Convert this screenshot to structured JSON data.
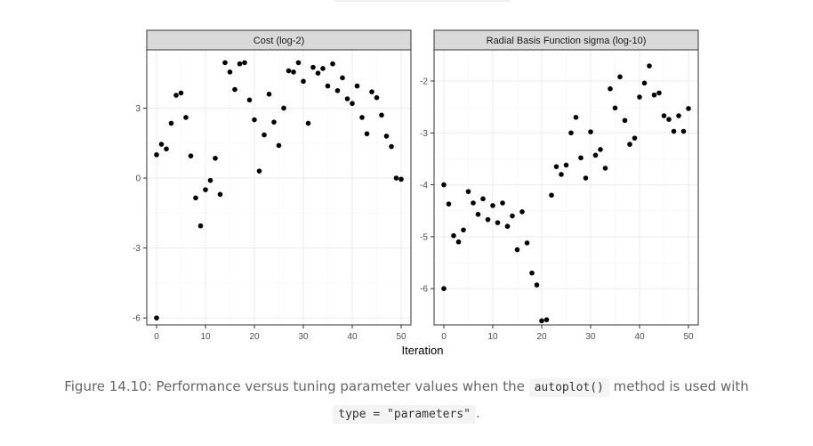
{
  "chart_data": [
    {
      "type": "scatter",
      "title": "Cost (log-2)",
      "xlabel": "Iteration",
      "ylabel": "",
      "xlim": [
        -2,
        52
      ],
      "ylim": [
        -6.3,
        5.5
      ],
      "xticks": [
        "0",
        "10",
        "20",
        "30",
        "40",
        "50"
      ],
      "yticks": [
        "-6",
        "-3",
        "0",
        "3"
      ],
      "grid": true,
      "x": [
        0,
        0,
        1,
        2,
        3,
        4,
        5,
        6,
        7,
        8,
        9,
        10,
        11,
        12,
        13,
        14,
        15,
        16,
        17,
        18,
        19,
        20,
        21,
        22,
        23,
        24,
        25,
        26,
        27,
        28,
        29,
        30,
        31,
        32,
        33,
        34,
        35,
        36,
        37,
        38,
        39,
        40,
        41,
        42,
        43,
        44,
        45,
        46,
        47,
        48,
        49,
        50
      ],
      "y": [
        -6.0,
        1.0,
        1.45,
        1.25,
        2.35,
        3.55,
        3.65,
        2.6,
        0.95,
        -0.85,
        -2.05,
        -0.5,
        -0.1,
        0.85,
        -0.7,
        4.95,
        4.55,
        3.8,
        4.9,
        4.95,
        3.35,
        2.5,
        0.3,
        1.85,
        3.6,
        2.4,
        1.4,
        3.0,
        4.6,
        4.55,
        4.95,
        4.15,
        2.35,
        4.75,
        4.5,
        4.7,
        3.95,
        4.9,
        3.75,
        4.3,
        3.4,
        3.2,
        3.95,
        2.6,
        1.9,
        3.7,
        3.45,
        2.7,
        1.8,
        1.35,
        0.0,
        -0.05
      ]
    },
    {
      "type": "scatter",
      "title": "Radial Basis Function sigma (log-10)",
      "xlabel": "Iteration",
      "ylabel": "",
      "xlim": [
        -2,
        52
      ],
      "ylim": [
        -6.7,
        -1.4
      ],
      "xticks": [
        "0",
        "10",
        "20",
        "30",
        "40",
        "50"
      ],
      "yticks": [
        "-6",
        "-5",
        "-4",
        "-3",
        "-2"
      ],
      "grid": true,
      "x": [
        0,
        0,
        1,
        2,
        3,
        4,
        5,
        6,
        7,
        8,
        9,
        10,
        11,
        12,
        13,
        14,
        15,
        16,
        17,
        18,
        19,
        20,
        21,
        22,
        23,
        24,
        25,
        26,
        27,
        28,
        29,
        30,
        31,
        32,
        33,
        34,
        35,
        36,
        37,
        38,
        39,
        40,
        41,
        42,
        43,
        44,
        45,
        46,
        47,
        48,
        49,
        50
      ],
      "y": [
        -6.0,
        -4.0,
        -4.37,
        -4.98,
        -5.1,
        -4.87,
        -4.13,
        -4.35,
        -4.57,
        -4.27,
        -4.67,
        -4.4,
        -4.73,
        -4.35,
        -4.8,
        -4.6,
        -5.25,
        -4.52,
        -5.12,
        -5.7,
        -5.93,
        -6.62,
        -6.6,
        -4.2,
        -3.65,
        -3.8,
        -3.62,
        -3.0,
        -2.7,
        -3.48,
        -3.87,
        -2.98,
        -3.43,
        -3.32,
        -3.68,
        -2.15,
        -2.52,
        -1.92,
        -2.76,
        -3.22,
        -3.1,
        -2.31,
        -2.04,
        -1.71,
        -2.27,
        -2.23,
        -2.67,
        -2.74,
        -2.97,
        -2.67,
        -2.97,
        -2.53
      ]
    }
  ],
  "caption": {
    "text_before": "Figure 14.10: Performance versus tuning parameter values when the",
    "code1": "autoplot()",
    "text_middle": "method is used with",
    "code2": "type = \"parameters\"",
    "text_after": "."
  },
  "colors": {
    "point": "#000000",
    "strip_fill": "#d9d9d9",
    "strip_border": "#333333",
    "panel_border": "#333333",
    "grid_major": "#ebebeb",
    "grid_minor": "#f5f5f5",
    "caption": "#666666"
  }
}
